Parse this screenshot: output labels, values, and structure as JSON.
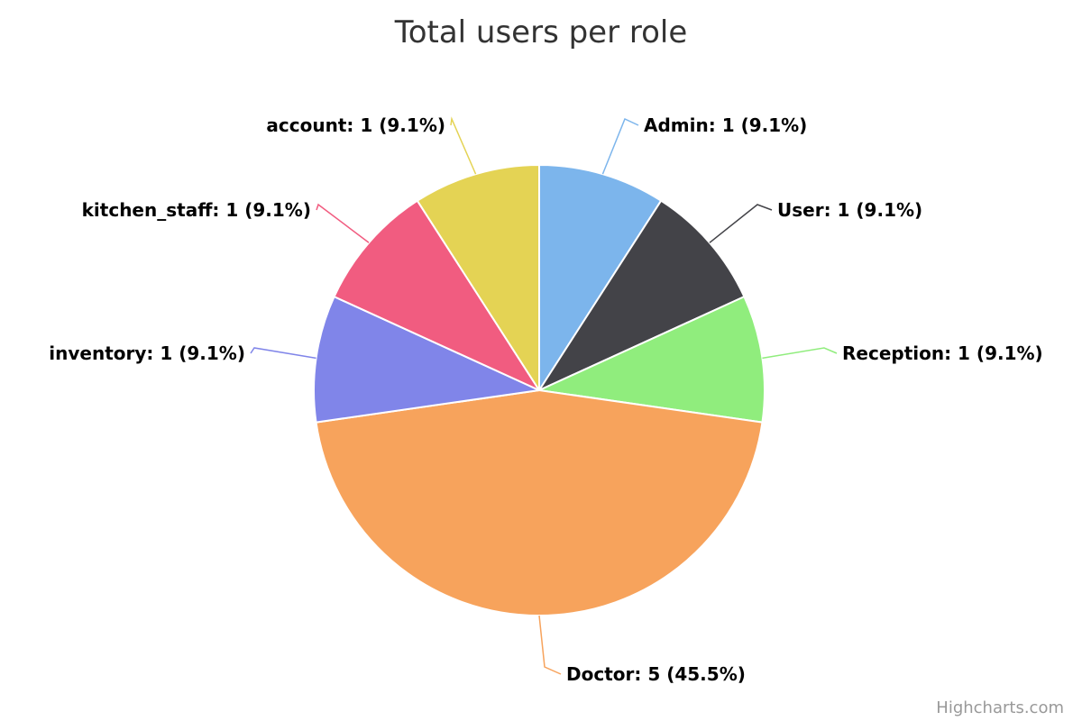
{
  "chart_data": {
    "type": "pie",
    "title": "Total users per role",
    "slices": [
      {
        "name": "Admin",
        "value": 1,
        "percent": "9.1%",
        "label": "Admin: 1 (9.1%)",
        "color": "#7cb5ec"
      },
      {
        "name": "User",
        "value": 1,
        "percent": "9.1%",
        "label": "User: 1 (9.1%)",
        "color": "#434348"
      },
      {
        "name": "Reception",
        "value": 1,
        "percent": "9.1%",
        "label": "Reception: 1 (9.1%)",
        "color": "#90ed7d"
      },
      {
        "name": "Doctor",
        "value": 5,
        "percent": "45.5%",
        "label": "Doctor: 5 (45.5%)",
        "color": "#f7a35c"
      },
      {
        "name": "inventory",
        "value": 1,
        "percent": "9.1%",
        "label": "inventory: 1 (9.1%)",
        "color": "#8085e9"
      },
      {
        "name": "kitchen_staff",
        "value": 1,
        "percent": "9.1%",
        "label": "kitchen_staff: 1 (9.1%)",
        "color": "#f15c80"
      },
      {
        "name": "account",
        "value": 1,
        "percent": "9.1%",
        "label": "account: 1 (9.1%)",
        "color": "#e4d354"
      }
    ]
  },
  "credits": "Highcharts.com"
}
